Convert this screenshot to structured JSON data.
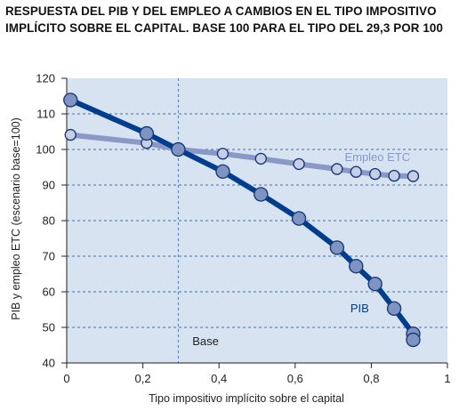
{
  "title": "RESPUESTA DEL PIB Y DEL EMPLEO A CAMBIOS EN EL TIPO IMPOSITIVO IMPLÍCITO SOBRE EL CAPITAL. BASE 100 PARA EL TIPO DEL 29,3 POR 100",
  "colors": {
    "plot_background": "#d7e3f1",
    "grid": "#3f6fb4",
    "pib": "#003d8f",
    "pib_marker": "#7e94c2",
    "empleo": "#8a98c8",
    "empleo_marker": "#c7cfe6",
    "marker_stroke": "#1d3a7a"
  },
  "chart_data": {
    "type": "line",
    "title": "RESPUESTA DEL PIB Y DEL EMPLEO A CAMBIOS EN EL TIPO IMPOSITIVO IMPLÍCITO SOBRE EL CAPITAL. BASE 100 PARA EL TIPO DEL 29,3 POR 100",
    "xlabel": "Tipo impositivo implícito sobre el capital",
    "ylabel": "PIB y empleo ETC (escenario base=100)",
    "xlim": [
      0,
      1
    ],
    "ylim": [
      40,
      120
    ],
    "xticks": [
      "0",
      "0,2",
      "0,4",
      "0,6",
      "0,8",
      "1"
    ],
    "yticks": [
      "40",
      "50",
      "60",
      "70",
      "80",
      "90",
      "100",
      "110",
      "120"
    ],
    "grid": "horizontal dashed",
    "reference_line": {
      "x": 0.293,
      "label": "Base"
    },
    "series": [
      {
        "name": "PIB",
        "x": [
          0.01,
          0.21,
          0.293,
          0.41,
          0.51,
          0.61,
          0.71,
          0.76,
          0.81,
          0.86,
          0.91,
          0.91
        ],
        "y": [
          113.9,
          104.5,
          100,
          93.8,
          87.4,
          80.6,
          72.4,
          67.2,
          62.2,
          55.3,
          48.2,
          46.5
        ]
      },
      {
        "name": "Empleo ETC",
        "x": [
          0.01,
          0.21,
          0.293,
          0.41,
          0.51,
          0.61,
          0.71,
          0.76,
          0.81,
          0.86,
          0.91
        ],
        "y": [
          104.1,
          101.8,
          100,
          98.8,
          97.4,
          95.9,
          94.5,
          93.7,
          93.1,
          92.6,
          92.5
        ]
      }
    ]
  }
}
